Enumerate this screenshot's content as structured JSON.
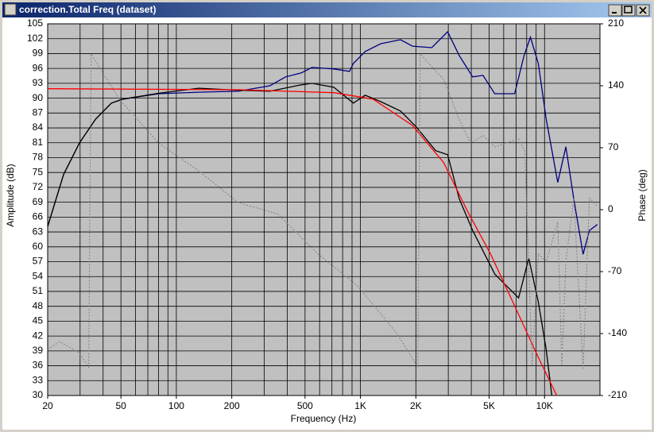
{
  "window": {
    "title": "correction.Total Freq (dataset)"
  },
  "chart_data": {
    "type": "line",
    "xlabel": "Frequency (Hz)",
    "ylabel": "Amplitude (dB)",
    "y2label": "Phase (deg)",
    "xscale": "log",
    "xlim": [
      20,
      20000
    ],
    "ylim": [
      30,
      105
    ],
    "y2lim": [
      -210,
      210
    ],
    "xticks": [
      20,
      50,
      100,
      200,
      500,
      {
        "value": 1000,
        "label": "1K"
      },
      {
        "value": 2000,
        "label": "2K"
      },
      {
        "value": 5000,
        "label": "5K"
      },
      {
        "value": 10000,
        "label": "10K"
      }
    ],
    "xgrid": [
      20,
      30,
      40,
      50,
      60,
      70,
      80,
      90,
      100,
      200,
      300,
      400,
      500,
      600,
      700,
      800,
      900,
      1000,
      2000,
      3000,
      4000,
      5000,
      6000,
      7000,
      8000,
      9000,
      10000,
      20000
    ],
    "yticks": [
      30,
      33,
      36,
      39,
      42,
      45,
      48,
      51,
      54,
      57,
      60,
      63,
      66,
      69,
      72,
      75,
      78,
      81,
      84,
      87,
      90,
      93,
      96,
      99,
      102,
      105
    ],
    "y2ticks": [
      -210,
      -140,
      -70,
      0,
      70,
      140,
      210
    ],
    "grid": true,
    "series": [
      {
        "color": "#000080",
        "style": "solid",
        "x": [
          20,
          24.4,
          29.8,
          36.5,
          44.4,
          51.3,
          80.3,
          132,
          217,
          322,
          392,
          478,
          545,
          717,
          872,
          915,
          1060,
          1290,
          1650,
          1915,
          2440,
          2975,
          3440,
          4070,
          4630,
          5365,
          6875,
          7740,
          8380,
          9250,
          10200,
          11800,
          13060,
          14410,
          16200,
          17530,
          19360
        ],
        "values": [
          64.1,
          74.6,
          81,
          85.8,
          89,
          89.8,
          90.9,
          91.2,
          91.4,
          92.5,
          94.3,
          95.1,
          96.2,
          95.9,
          95.4,
          97,
          99.4,
          101,
          101.8,
          100.5,
          100.2,
          103.4,
          98.6,
          94.3,
          94.6,
          90.9,
          90.9,
          98.6,
          102.3,
          97,
          85.8,
          73,
          80.2,
          69.7,
          58.5,
          63.3,
          64.5
        ]
      },
      {
        "color": "#000000",
        "style": "solid",
        "x": [
          20,
          24.4,
          29.8,
          36.5,
          44.4,
          51.3,
          80.3,
          132,
          217,
          322,
          478,
          545,
          717,
          915,
          1060,
          1290,
          1650,
          2010,
          2560,
          2975,
          3440,
          4070,
          5365,
          7230,
          8210,
          9250,
          10200,
          10950
        ],
        "values": [
          64.1,
          74.6,
          81,
          85.8,
          89,
          89.8,
          91,
          92,
          91.6,
          91.4,
          92.7,
          93,
          92.2,
          89,
          90.6,
          89.3,
          87.4,
          84.2,
          79.4,
          78.6,
          69.7,
          63.3,
          54.5,
          49.7,
          57.7,
          48.9,
          39.3,
          30
        ]
      },
      {
        "color": "#ff0000",
        "style": "solid",
        "x": [
          20,
          217,
          717,
          1170,
          1915,
          2830,
          3800,
          5100,
          6875,
          9250,
          11650
        ],
        "values": [
          91.9,
          91.7,
          91.1,
          89.8,
          84.5,
          77,
          67.3,
          58.5,
          48.1,
          37.7,
          30
        ]
      },
      {
        "color": "#808080",
        "style": "dashed",
        "axis": "y2",
        "x": [
          20,
          23.2,
          29.8,
          33.4,
          34.4,
          48.9,
          80.3,
          132,
          217,
          356,
          587,
          963,
          1580,
          2050,
          2110,
          2830,
          3440,
          3970,
          4630,
          5365,
          7230,
          7820,
          8560,
          9250,
          10200,
          11800,
          12400,
          13060,
          14410,
          16200,
          17530,
          19360
        ],
        "values": [
          -158,
          -149,
          -162,
          -178,
          176,
          125,
          75,
          44,
          8,
          -5,
          -50,
          -86,
          -140,
          -178,
          176,
          147,
          102,
          75,
          84,
          71,
          80,
          66,
          -176,
          -50,
          -59,
          -14,
          -176,
          -59,
          13,
          -180,
          13,
          4
        ]
      }
    ]
  }
}
